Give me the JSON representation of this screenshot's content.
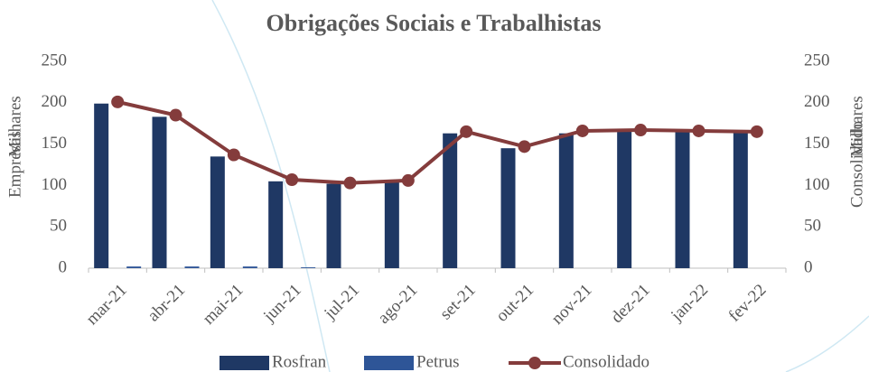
{
  "chart_data": {
    "type": "bar",
    "title": "Obrigações Sociais e Trabalhistas",
    "ylabel": "Empresas",
    "yunit": "Milhares",
    "y2label": "Consolidado",
    "y2unit": "Milhares",
    "categories": [
      "mar-21",
      "abr-21",
      "mai-21",
      "jun-21",
      "jul-21",
      "ago-21",
      "set-21",
      "out-21",
      "nov-21",
      "dez-21",
      "jan-22",
      "fev-22"
    ],
    "series": [
      {
        "name": "Rosfran",
        "color": "#1f3864",
        "type": "bar",
        "values": [
          199,
          183,
          135,
          105,
          102,
          105,
          163,
          145,
          163,
          166,
          165,
          164
        ]
      },
      {
        "name": "Petrus",
        "color": "#2e5597",
        "type": "bar",
        "values": [
          2,
          2,
          2,
          1,
          0,
          0,
          0,
          0,
          0,
          0,
          0,
          0
        ]
      },
      {
        "name": "Consolidado",
        "color": "#843c3c",
        "type": "line",
        "axis": "y2",
        "values": [
          201,
          185,
          137,
          107,
          103,
          106,
          165,
          147,
          166,
          167,
          166,
          165
        ]
      }
    ],
    "ylim": [
      0,
      250
    ],
    "yticks": [
      0,
      50,
      100,
      150,
      200,
      250
    ],
    "y2lim": [
      0,
      250
    ],
    "y2ticks": [
      0,
      50,
      100,
      150,
      200,
      250
    ],
    "grid": false,
    "legend": "bottom"
  }
}
